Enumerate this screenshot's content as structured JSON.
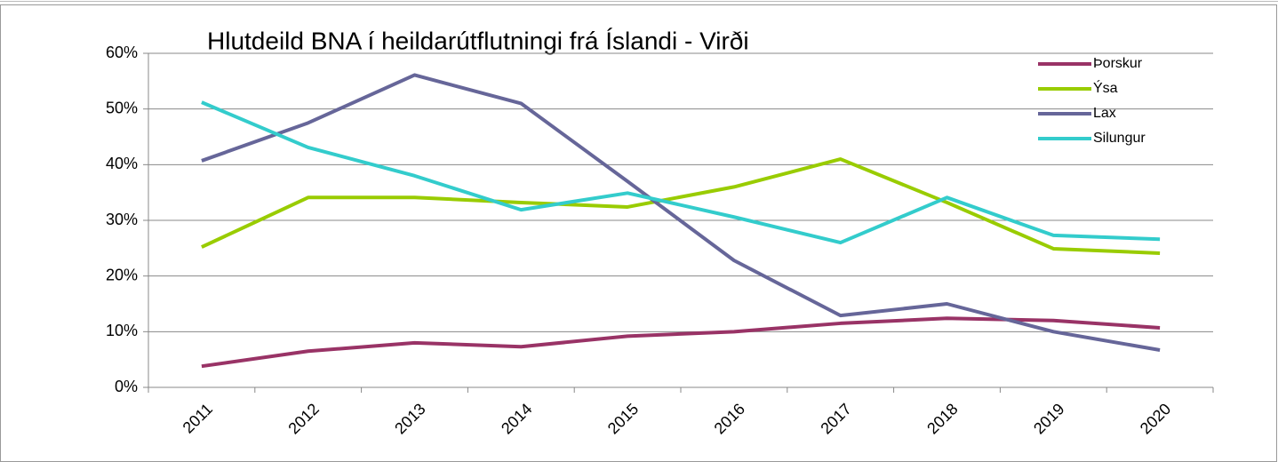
{
  "chart_data": {
    "type": "line",
    "title": "Hlutdeild BNA í heildarútflutningi frá Íslandi - Virði",
    "categories": [
      "2011",
      "2012",
      "2013",
      "2014",
      "2015",
      "2016",
      "2017",
      "2018",
      "2019",
      "2020"
    ],
    "series": [
      {
        "name": "Þorskur",
        "color": "#993366",
        "values": [
          3.8,
          6.5,
          8.0,
          7.3,
          9.2,
          10.0,
          11.5,
          12.4,
          12.0,
          10.7
        ]
      },
      {
        "name": "Ýsa",
        "color": "#99cc00",
        "values": [
          25.2,
          34.1,
          34.1,
          33.2,
          32.4,
          36.0,
          41.0,
          33.2,
          24.9,
          24.1
        ]
      },
      {
        "name": "Lax",
        "color": "#666699",
        "values": [
          40.7,
          47.5,
          56.1,
          51.0,
          37.0,
          22.8,
          12.9,
          15.0,
          10.0,
          6.7
        ]
      },
      {
        "name": "Silungur",
        "color": "#33cccc",
        "values": [
          51.2,
          43.1,
          38.0,
          31.9,
          34.9,
          30.6,
          26.0,
          34.1,
          27.3,
          26.6
        ]
      }
    ],
    "ylim": [
      0,
      60
    ],
    "yticks": [
      {
        "value": 0,
        "label": "0%"
      },
      {
        "value": 10,
        "label": "10%"
      },
      {
        "value": 20,
        "label": "20%"
      },
      {
        "value": 30,
        "label": "30%"
      },
      {
        "value": 40,
        "label": "40%"
      },
      {
        "value": 50,
        "label": "50%"
      },
      {
        "value": 60,
        "label": "60%"
      }
    ],
    "grid": true,
    "legend": "top-right"
  }
}
